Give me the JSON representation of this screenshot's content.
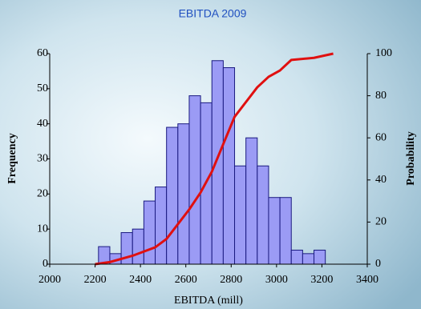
{
  "chart_data": {
    "type": "histogram",
    "title": "EBITDA 2009",
    "x_label": "EBITDA (mill)",
    "y_label": "Frequency",
    "y2_label": "Probability",
    "bins": [
      2215,
      2265,
      2315,
      2365,
      2415,
      2465,
      2515,
      2565,
      2615,
      2665,
      2715,
      2765,
      2815,
      2865,
      2915,
      2965,
      3015,
      3065,
      3115,
      3165,
      3215
    ],
    "values": [
      5,
      3,
      9,
      10,
      18,
      22,
      39,
      40,
      48,
      46,
      58,
      56,
      28,
      36,
      28,
      19,
      19,
      4,
      3,
      4
    ],
    "color": "#9b9bf5",
    "edge_color": "#1a1a80",
    "line": {
      "color": "#e01010",
      "axis": "y2",
      "x": [
        2200,
        2265,
        2365,
        2465,
        2515,
        2565,
        2615,
        2665,
        2715,
        2765,
        2815,
        2865,
        2915,
        2965,
        3015,
        3065,
        3165,
        3250
      ],
      "values": [
        0,
        1,
        4,
        8,
        12,
        19,
        26,
        34,
        44,
        57,
        70,
        77,
        84,
        89,
        92,
        97,
        98,
        100
      ]
    },
    "xlim": [
      2000,
      3400
    ],
    "xticks": [
      2000,
      2200,
      2400,
      2600,
      2800,
      3000,
      3200,
      3400
    ],
    "ylim": [
      0,
      60
    ],
    "yticks": [
      0,
      10,
      20,
      30,
      40,
      50,
      60
    ],
    "y2lim": [
      0,
      100
    ],
    "y2ticks": [
      0,
      20,
      40,
      60,
      80,
      100
    ]
  }
}
